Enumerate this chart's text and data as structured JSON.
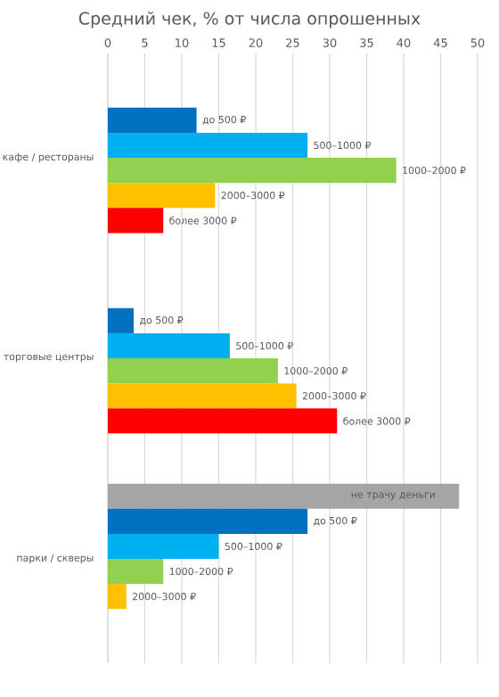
{
  "chart_data": {
    "type": "bar",
    "orientation": "horizontal",
    "title": "Средний чек, % от числа опрошенных",
    "categories": [
      "кафе / рестораны",
      "торговые центры",
      "парки / скверы"
    ],
    "series": [
      {
        "name": "не трачу деньги",
        "color": "#a5a5a5",
        "values": [
          null,
          null,
          47.5
        ]
      },
      {
        "name": "до 500 ₽",
        "color": "#0070c0",
        "values": [
          12,
          3.5,
          27
        ]
      },
      {
        "name": "500–1000 ₽",
        "color": "#00b0f0",
        "values": [
          27,
          16.5,
          15
        ]
      },
      {
        "name": "1000–2000 ₽",
        "color": "#92d050",
        "values": [
          39,
          23,
          7.5
        ]
      },
      {
        "name": "2000–3000 ₽",
        "color": "#ffc000",
        "values": [
          14.5,
          25.5,
          2.5
        ]
      },
      {
        "name": "более 3000 ₽",
        "color": "#ff0000",
        "values": [
          7.5,
          31,
          null
        ]
      }
    ],
    "xlim": [
      0,
      50
    ],
    "xticks": [
      0,
      5,
      10,
      15,
      20,
      25,
      30,
      35,
      40,
      45,
      50
    ],
    "grid": "x"
  }
}
